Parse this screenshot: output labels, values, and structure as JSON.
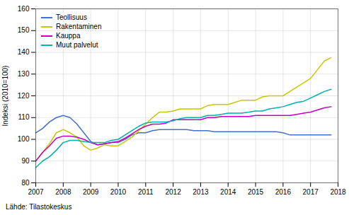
{
  "chart_data": {
    "type": "line",
    "ylabel": "Indeksi (2010=100)",
    "caption": "Lähde: Tilastokeskus",
    "x": [
      2007.0,
      2007.25,
      2007.5,
      2007.75,
      2008.0,
      2008.25,
      2008.5,
      2008.75,
      2009.0,
      2009.25,
      2009.5,
      2009.75,
      2010.0,
      2010.25,
      2010.5,
      2010.75,
      2011.0,
      2011.25,
      2011.5,
      2011.75,
      2012.0,
      2012.25,
      2012.5,
      2012.75,
      2013.0,
      2013.25,
      2013.5,
      2013.75,
      2014.0,
      2014.25,
      2014.5,
      2014.75,
      2015.0,
      2015.25,
      2015.5,
      2015.75,
      2016.0,
      2016.25,
      2016.5,
      2016.75,
      2017.0,
      2017.25,
      2017.5,
      2017.75
    ],
    "series": [
      {
        "name": "Teollisuus",
        "color": "#4472c4",
        "values": [
          103,
          105,
          108,
          110,
          111,
          110,
          107,
          103,
          99,
          97.5,
          98,
          98.5,
          98.5,
          100,
          102,
          103,
          103,
          104,
          104.5,
          104.5,
          104.5,
          104.5,
          104.5,
          104,
          104,
          104,
          103.5,
          103.5,
          103.5,
          103.5,
          103.5,
          103.5,
          103.5,
          103.5,
          103.5,
          103.5,
          103,
          102,
          102,
          102,
          102,
          102,
          102,
          102
        ]
      },
      {
        "name": "Rakentaminen",
        "color": "#c8c800",
        "values": [
          90,
          94,
          98,
          103,
          104.5,
          103,
          101,
          97,
          95,
          96,
          97.5,
          97,
          97,
          99,
          101,
          104,
          107,
          110,
          112.5,
          112.5,
          113,
          114,
          114,
          114,
          114,
          115.5,
          116,
          116,
          116,
          117,
          118,
          118,
          118,
          119.5,
          120,
          120,
          120,
          122,
          124,
          126,
          128,
          132,
          136,
          137.5
        ]
      },
      {
        "name": "Kauppa",
        "color": "#c000c0",
        "values": [
          90,
          94,
          97,
          100.5,
          101.5,
          101.5,
          101,
          100,
          98.5,
          97.5,
          98,
          98.5,
          99,
          100.5,
          102.5,
          104.5,
          106,
          107,
          107,
          107.5,
          109,
          109,
          109,
          109,
          109,
          110,
          110,
          110.5,
          110.5,
          110.5,
          110.5,
          110.5,
          111,
          111,
          111,
          111,
          111,
          111,
          111.5,
          112,
          112.5,
          113.5,
          114.5,
          115
        ]
      },
      {
        "name": "Muut palvelut",
        "color": "#00b0b0",
        "values": [
          87,
          90,
          92,
          95,
          98.5,
          99.5,
          99.5,
          99,
          98.5,
          98.5,
          98.5,
          99.5,
          100,
          102,
          104,
          106,
          107.5,
          108,
          108,
          108,
          108.5,
          109.5,
          110,
          110,
          110,
          111,
          111,
          111.5,
          112,
          112,
          112,
          112.5,
          113,
          113,
          114,
          114.5,
          115,
          116,
          117,
          117.5,
          119,
          120.5,
          122,
          123
        ]
      }
    ],
    "xlim": [
      2007,
      2018
    ],
    "xticks": [
      2007,
      2008,
      2009,
      2010,
      2011,
      2012,
      2013,
      2014,
      2015,
      2016,
      2017,
      2018
    ],
    "ylim": [
      80,
      160
    ],
    "yticks": [
      80,
      90,
      100,
      110,
      120,
      130,
      140,
      150,
      160
    ],
    "grid": true,
    "legend": "upper left"
  }
}
